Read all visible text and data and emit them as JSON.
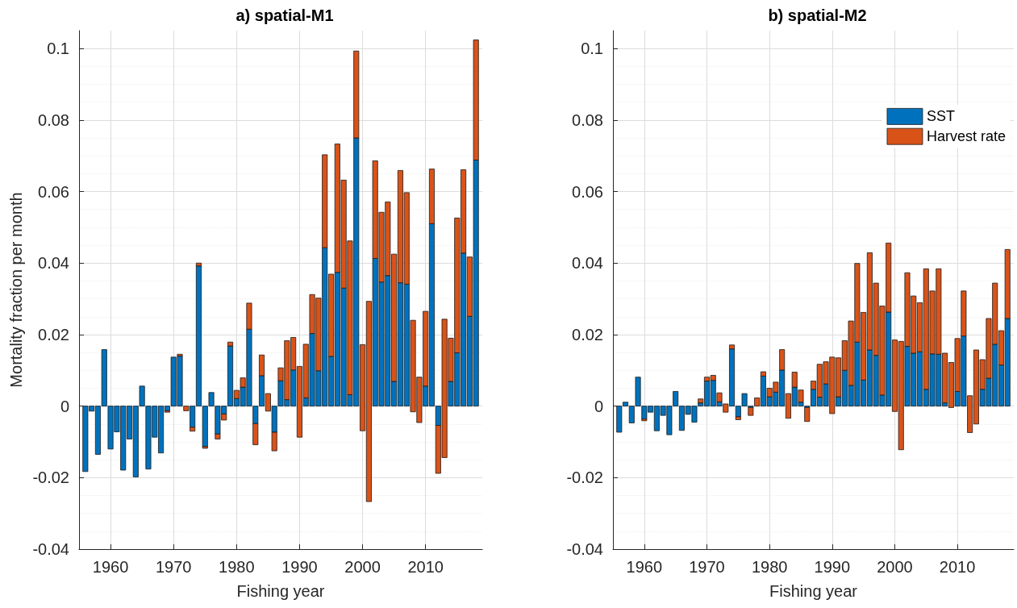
{
  "chart_data": [
    {
      "type": "bar",
      "title": "a) spatial-M1",
      "xlabel": "Fishing year",
      "ylabel": "Mortality fraction per month",
      "stacked": true,
      "grid": true,
      "legend": false,
      "x": [
        1956,
        1957,
        1958,
        1959,
        1960,
        1961,
        1962,
        1963,
        1964,
        1965,
        1966,
        1967,
        1968,
        1969,
        1970,
        1971,
        1972,
        1973,
        1974,
        1975,
        1976,
        1977,
        1978,
        1979,
        1980,
        1981,
        1982,
        1983,
        1984,
        1985,
        1986,
        1987,
        1988,
        1989,
        1990,
        1991,
        1992,
        1993,
        1994,
        1995,
        1996,
        1997,
        1998,
        1999,
        2000,
        2001,
        2002,
        2003,
        2004,
        2005,
        2006,
        2007,
        2008,
        2009,
        2010,
        2011,
        2012,
        2013,
        2014,
        2015,
        2016,
        2017,
        2018
      ],
      "xlim": [
        1955,
        2019
      ],
      "xticks": [
        1960,
        1970,
        1980,
        1990,
        2000,
        2010
      ],
      "ylim": [
        -0.04,
        0.105
      ],
      "yticks": [
        -0.04,
        -0.02,
        0,
        0.02,
        0.04,
        0.06,
        0.08,
        0.1
      ],
      "series": [
        {
          "color": "#0072bd",
          "values": [
            -0.0183,
            -0.0014,
            -0.0135,
            0.0158,
            -0.012,
            -0.0072,
            -0.0179,
            -0.0092,
            -0.0198,
            0.0056,
            -0.0176,
            -0.0087,
            -0.0131,
            -0.0013,
            0.0137,
            0.014,
            null,
            -0.0059,
            0.0392,
            -0.0113,
            0.0038,
            -0.0078,
            -0.0022,
            0.0168,
            0.0021,
            0.0053,
            0.0215,
            -0.0049,
            0.0085,
            null,
            -0.0073,
            0.0071,
            0.0018,
            0.0101,
            null,
            0.0023,
            0.0203,
            0.0099,
            0.0443,
            0.0139,
            0.0374,
            0.033,
            0.0032,
            0.075,
            null,
            null,
            0.0413,
            0.0347,
            0.0365,
            0.0069,
            0.0345,
            0.0341,
            null,
            null,
            0.0056,
            0.051,
            -0.0054,
            null,
            0.0069,
            0.0149,
            0.0428,
            0.0251,
            0.0688
          ]
        },
        {
          "color": "#d95319",
          "values": [
            null,
            null,
            null,
            null,
            null,
            null,
            null,
            null,
            null,
            null,
            null,
            null,
            null,
            -0.0004,
            null,
            0.0005,
            -0.0013,
            -0.0011,
            0.0008,
            -0.0005,
            null,
            -0.0014,
            -0.0017,
            0.0011,
            0.0023,
            0.0026,
            0.0073,
            -0.0059,
            0.0058,
            0.0049,
            -0.0052,
            0.0036,
            0.0165,
            0.0091,
            0.0198,
            0.015,
            0.0109,
            0.0203,
            0.026,
            0.023,
            0.0359,
            0.0302,
            0.043,
            0.0243,
            0.0241,
            0.056,
            0.0273,
            0.0195,
            0.0206,
            0.0356,
            0.0314,
            0.0256,
            0.0256,
            0.0127,
            0.0209,
            0.0153,
            -0.0134,
            0.0387,
            0.0121,
            0.0377,
            0.0233,
            0.0166,
            0.0336
          ],
          "base": [
            null,
            null,
            null,
            null,
            null,
            null,
            null,
            null,
            null,
            null,
            null,
            null,
            null,
            null,
            null,
            null,
            null,
            null,
            null,
            null,
            null,
            null,
            null,
            null,
            null,
            null,
            null,
            null,
            null,
            -0.0014,
            null,
            null,
            null,
            null,
            -0.0087,
            null,
            null,
            null,
            null,
            null,
            null,
            null,
            null,
            null,
            -0.0069,
            -0.0267,
            null,
            null,
            null,
            null,
            null,
            null,
            -0.0016,
            -0.0046,
            null,
            null,
            null,
            -0.0144,
            null,
            null,
            null,
            null,
            null
          ]
        }
      ]
    },
    {
      "type": "bar",
      "title": "b) spatial-M2",
      "xlabel": "Fishing year",
      "stacked": true,
      "grid": true,
      "legend": "top right",
      "x": [
        1956,
        1957,
        1958,
        1959,
        1960,
        1961,
        1962,
        1963,
        1964,
        1965,
        1966,
        1967,
        1968,
        1969,
        1970,
        1971,
        1972,
        1973,
        1974,
        1975,
        1976,
        1977,
        1978,
        1979,
        1980,
        1981,
        1982,
        1983,
        1984,
        1985,
        1986,
        1987,
        1988,
        1989,
        1990,
        1991,
        1992,
        1993,
        1994,
        1995,
        1996,
        1997,
        1998,
        1999,
        2000,
        2001,
        2002,
        2003,
        2004,
        2005,
        2006,
        2007,
        2008,
        2009,
        2010,
        2011,
        2012,
        2013,
        2014,
        2015,
        2016,
        2017,
        2018
      ],
      "xlim": [
        1955,
        2019
      ],
      "xticks": [
        1960,
        1970,
        1980,
        1990,
        2000,
        2010
      ],
      "ylim": [
        -0.04,
        0.105
      ],
      "yticks": [
        -0.04,
        -0.02,
        0,
        0.02,
        0.04,
        0.06,
        0.08,
        0.1
      ],
      "series": [
        {
          "name": "SST",
          "color": "#0072bd",
          "values": [
            -0.0073,
            0.0011,
            -0.0047,
            0.0081,
            -0.0036,
            -0.0017,
            -0.0069,
            -0.0026,
            -0.008,
            0.0041,
            -0.0068,
            -0.0023,
            -0.0045,
            0.0009,
            0.007,
            0.0072,
            0.0012,
            null,
            0.016,
            -0.003,
            0.0035,
            -0.0004,
            null,
            0.0084,
            0.0026,
            0.0039,
            0.0101,
            null,
            0.0053,
            0.0011,
            -0.0004,
            0.0047,
            0.0025,
            0.0062,
            null,
            0.0026,
            0.01,
            0.0058,
            0.0179,
            0.0073,
            0.0157,
            0.0142,
            0.0031,
            0.0263,
            null,
            null,
            0.0167,
            0.0148,
            0.0152,
            0.0047,
            0.0146,
            0.0145,
            0.0009,
            null,
            0.0041,
            0.0196,
            null,
            null,
            0.0047,
            0.0078,
            0.0173,
            0.0115,
            0.0245
          ]
        },
        {
          "name": "Harvest rate",
          "color": "#d95319",
          "values": [
            null,
            null,
            null,
            null,
            -0.0005,
            null,
            null,
            null,
            null,
            null,
            null,
            null,
            null,
            0.0011,
            0.0011,
            0.0014,
            0.0025,
            0.0023,
            0.0011,
            -0.0008,
            null,
            -0.0022,
            0.0023,
            0.0012,
            0.0024,
            0.0028,
            0.0057,
            0.0069,
            0.0042,
            0.0034,
            -0.0039,
            0.0023,
            0.0092,
            0.0062,
            0.0158,
            0.0109,
            0.0083,
            0.018,
            0.022,
            0.0189,
            0.0272,
            0.0202,
            0.0249,
            0.0193,
            0.02,
            0.0303,
            0.0206,
            0.016,
            0.0137,
            0.0337,
            0.0176,
            0.0239,
            0.0139,
            0.0126,
            0.0148,
            0.0126,
            0.0103,
            0.0207,
            0.0083,
            0.0167,
            0.0171,
            0.0096,
            0.0193
          ],
          "base": [
            null,
            null,
            null,
            null,
            null,
            null,
            null,
            null,
            null,
            null,
            null,
            null,
            null,
            null,
            null,
            null,
            null,
            -0.0017,
            null,
            null,
            null,
            null,
            null,
            null,
            null,
            null,
            null,
            -0.0034,
            null,
            null,
            null,
            null,
            null,
            null,
            -0.0021,
            null,
            null,
            null,
            null,
            null,
            null,
            null,
            null,
            null,
            -0.0015,
            -0.0122,
            null,
            null,
            null,
            null,
            null,
            null,
            null,
            -0.0004,
            null,
            null,
            -0.0074,
            -0.005,
            null,
            null,
            null,
            null,
            null
          ]
        }
      ]
    }
  ]
}
